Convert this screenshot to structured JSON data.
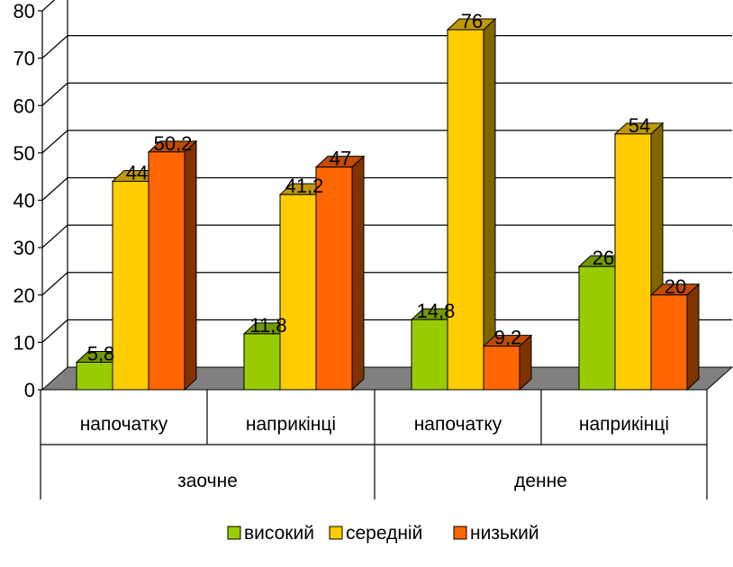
{
  "chart_data": {
    "type": "bar",
    "ylim": [
      0,
      80
    ],
    "yticks": [
      0,
      10,
      20,
      30,
      40,
      50,
      60,
      70,
      80
    ],
    "grid": true,
    "legend_position": "bottom",
    "group_levels": [
      {
        "label": "заочне",
        "span": 2
      },
      {
        "label": "денне",
        "span": 2
      }
    ],
    "categories": [
      "напочатку",
      "наприкінці",
      "напочатку",
      "наприкінці"
    ],
    "series": [
      {
        "name": "високий",
        "values": [
          5.8,
          11.8,
          14.8,
          26
        ],
        "labels": [
          "5,8",
          "11,8",
          "14,8",
          "26"
        ],
        "color": "#99cc00",
        "top_color": "#739900",
        "side_color": "#4d6600"
      },
      {
        "name": "середній",
        "values": [
          44,
          41.2,
          76,
          54
        ],
        "labels": [
          "44",
          "41,2",
          "76",
          "54"
        ],
        "color": "#ffcc00",
        "top_color": "#bf9900",
        "side_color": "#806600"
      },
      {
        "name": "низький",
        "values": [
          50.2,
          47,
          9.2,
          20
        ],
        "labels": [
          "50,2",
          "47",
          "9,2",
          "20"
        ],
        "color": "#ff6600",
        "top_color": "#bf4d00",
        "side_color": "#803300"
      }
    ]
  }
}
